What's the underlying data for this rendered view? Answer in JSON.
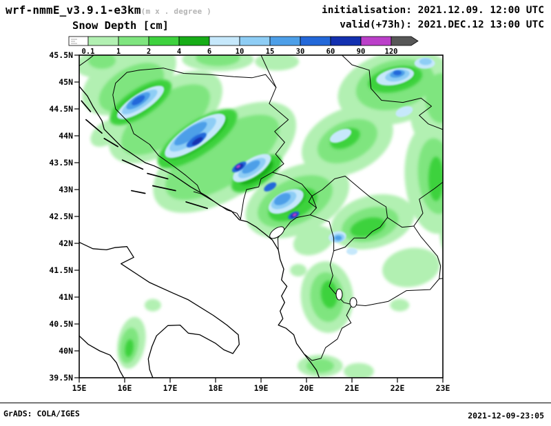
{
  "header": {
    "model": "wrf-nmmE_v3.9.1-e3km",
    "model_sub": "(m x . degree )",
    "field_title": "Snow Depth [cm]",
    "init_label": "initialisation: 2021.12.09.  12:00 UTC",
    "valid_label": "valid(+73h): 2021.DEC.12 13:00 UTC"
  },
  "colorbar": {
    "levels": [
      "0.1",
      "1",
      "2",
      "4",
      "6",
      "10",
      "15",
      "30",
      "60",
      "90",
      "120"
    ],
    "colors": [
      "#ffffff",
      "#b2f0b2",
      "#7fe57f",
      "#3ed23e",
      "#17ad17",
      "#c6e8fb",
      "#8ecdf5",
      "#4d9fe8",
      "#2368d9",
      "#1330b0",
      "#bb3fc9",
      "#575757"
    ]
  },
  "axes": {
    "lat_ticks": [
      "45.5N",
      "45N",
      "44.5N",
      "44N",
      "43.5N",
      "43N",
      "42.5N",
      "42N",
      "41.5N",
      "41N",
      "40.5N",
      "40N",
      "39.5N"
    ],
    "lon_ticks": [
      "15E",
      "16E",
      "17E",
      "18E",
      "19E",
      "20E",
      "21E",
      "22E",
      "23E"
    ]
  },
  "footer": {
    "credit": "GrADS: COLA/IGES",
    "timestamp": "2021-12-09-23:05"
  },
  "chart_data": {
    "type": "heatmap",
    "title": "Snow Depth [cm]",
    "units": "cm",
    "lon_range_deg_e": [
      15,
      23
    ],
    "lat_range_deg_n": [
      39.5,
      45.5
    ],
    "shading_levels_cm": [
      0.1,
      1,
      2,
      4,
      6,
      10,
      15,
      30,
      60,
      90,
      120
    ],
    "palette": [
      "#b2f0b2",
      "#7fe57f",
      "#3ed23e",
      "#17ad17",
      "#c6e8fb",
      "#8ecdf5",
      "#4d9fe8",
      "#2368d9",
      "#1330b0",
      "#bb3fc9",
      "#575757"
    ],
    "legend_position": "top",
    "grid": false
  }
}
